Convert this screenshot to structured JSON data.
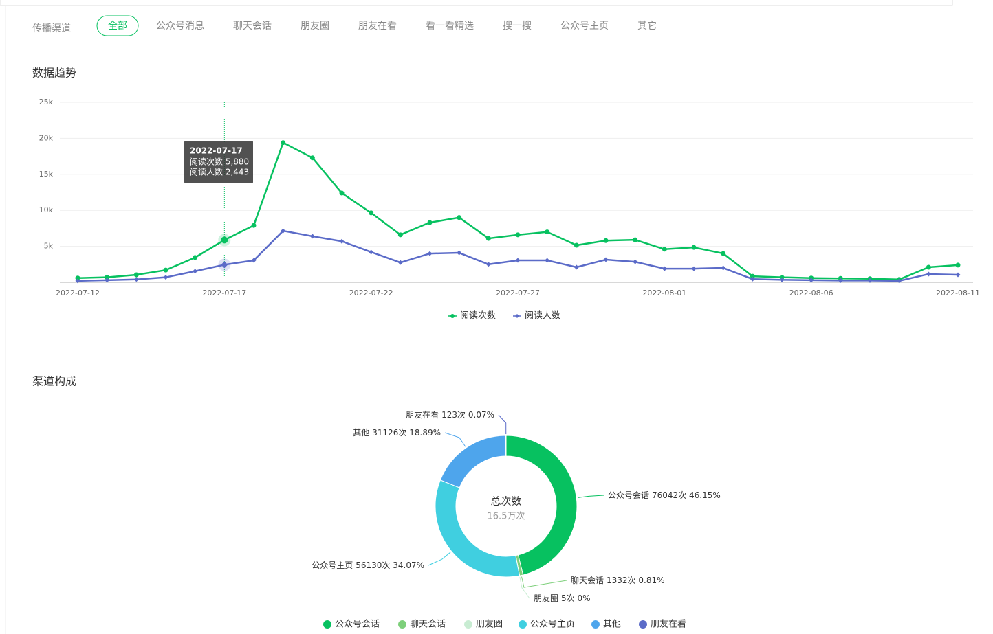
{
  "filter": {
    "label": "传播渠道",
    "tabs": [
      "全部",
      "公众号消息",
      "聊天会话",
      "朋友圈",
      "朋友在看",
      "看一看精选",
      "搜一搜",
      "公众号主页",
      "其它"
    ],
    "selected": "全部"
  },
  "sections": [
    "数据趋势",
    "渠道构成"
  ],
  "chart_data": [
    {
      "type": "line",
      "categories": [
        "2022-07-12",
        null,
        null,
        null,
        null,
        "2022-07-17",
        null,
        null,
        null,
        null,
        "2022-07-22",
        null,
        null,
        null,
        null,
        "2022-07-27",
        null,
        null,
        null,
        null,
        "2022-08-01",
        null,
        null,
        null,
        null,
        "2022-08-06",
        null,
        null,
        null,
        null,
        "2022-08-11"
      ],
      "series": [
        {
          "name": "阅读次数",
          "color": "#07c160",
          "marker": "circle",
          "values": [
            600,
            700,
            1050,
            1700,
            3450,
            5880,
            7900,
            19400,
            17300,
            12400,
            9650,
            6600,
            8300,
            9000,
            6100,
            6600,
            7000,
            5150,
            5800,
            5900,
            4600,
            4850,
            4000,
            850,
            700,
            600,
            550,
            500,
            400,
            2100,
            2400
          ]
        },
        {
          "name": "阅读人数",
          "color": "#5b6bc8",
          "marker": "diamond",
          "values": [
            200,
            300,
            400,
            700,
            1550,
            2443,
            3050,
            7150,
            6400,
            5700,
            4200,
            2750,
            4000,
            4100,
            2500,
            3050,
            3050,
            2100,
            3150,
            2850,
            1900,
            1900,
            2000,
            450,
            350,
            300,
            250,
            250,
            200,
            1150,
            1050
          ]
        }
      ],
      "ylim": [
        0,
        25000
      ],
      "yticks": [
        {
          "value": 5000,
          "label": "5k"
        },
        {
          "value": 10000,
          "label": "10k"
        },
        {
          "value": 15000,
          "label": "15k"
        },
        {
          "value": 20000,
          "label": "20k"
        },
        {
          "value": 25000,
          "label": "25k"
        }
      ],
      "grid": true,
      "legend": "bottom",
      "tooltip": {
        "title": "2022-07-17",
        "rows": [
          "阅读次数 5,880",
          "阅读人数 2,443"
        ]
      }
    },
    {
      "type": "pie",
      "donut": true,
      "categories": [
        "公众号会话",
        "聊天会话",
        "朋友圈",
        "公众号主页",
        "其他",
        "朋友在看"
      ],
      "values": [
        76042,
        1332,
        5,
        56130,
        31126,
        123
      ],
      "value_labels": [
        "76042次 46.15%",
        "1332次 0.81%",
        "5次 0%",
        "56130次 34.07%",
        "31126次 18.89%",
        "123次 0.07%"
      ],
      "colors": [
        "#07c160",
        "#7dcf7a",
        "#c8ecd2",
        "#40cfe0",
        "#4ea5ec",
        "#5b6bc8"
      ],
      "center_title": "总次数",
      "center_value": "16.5万次",
      "legend": "bottom"
    }
  ]
}
